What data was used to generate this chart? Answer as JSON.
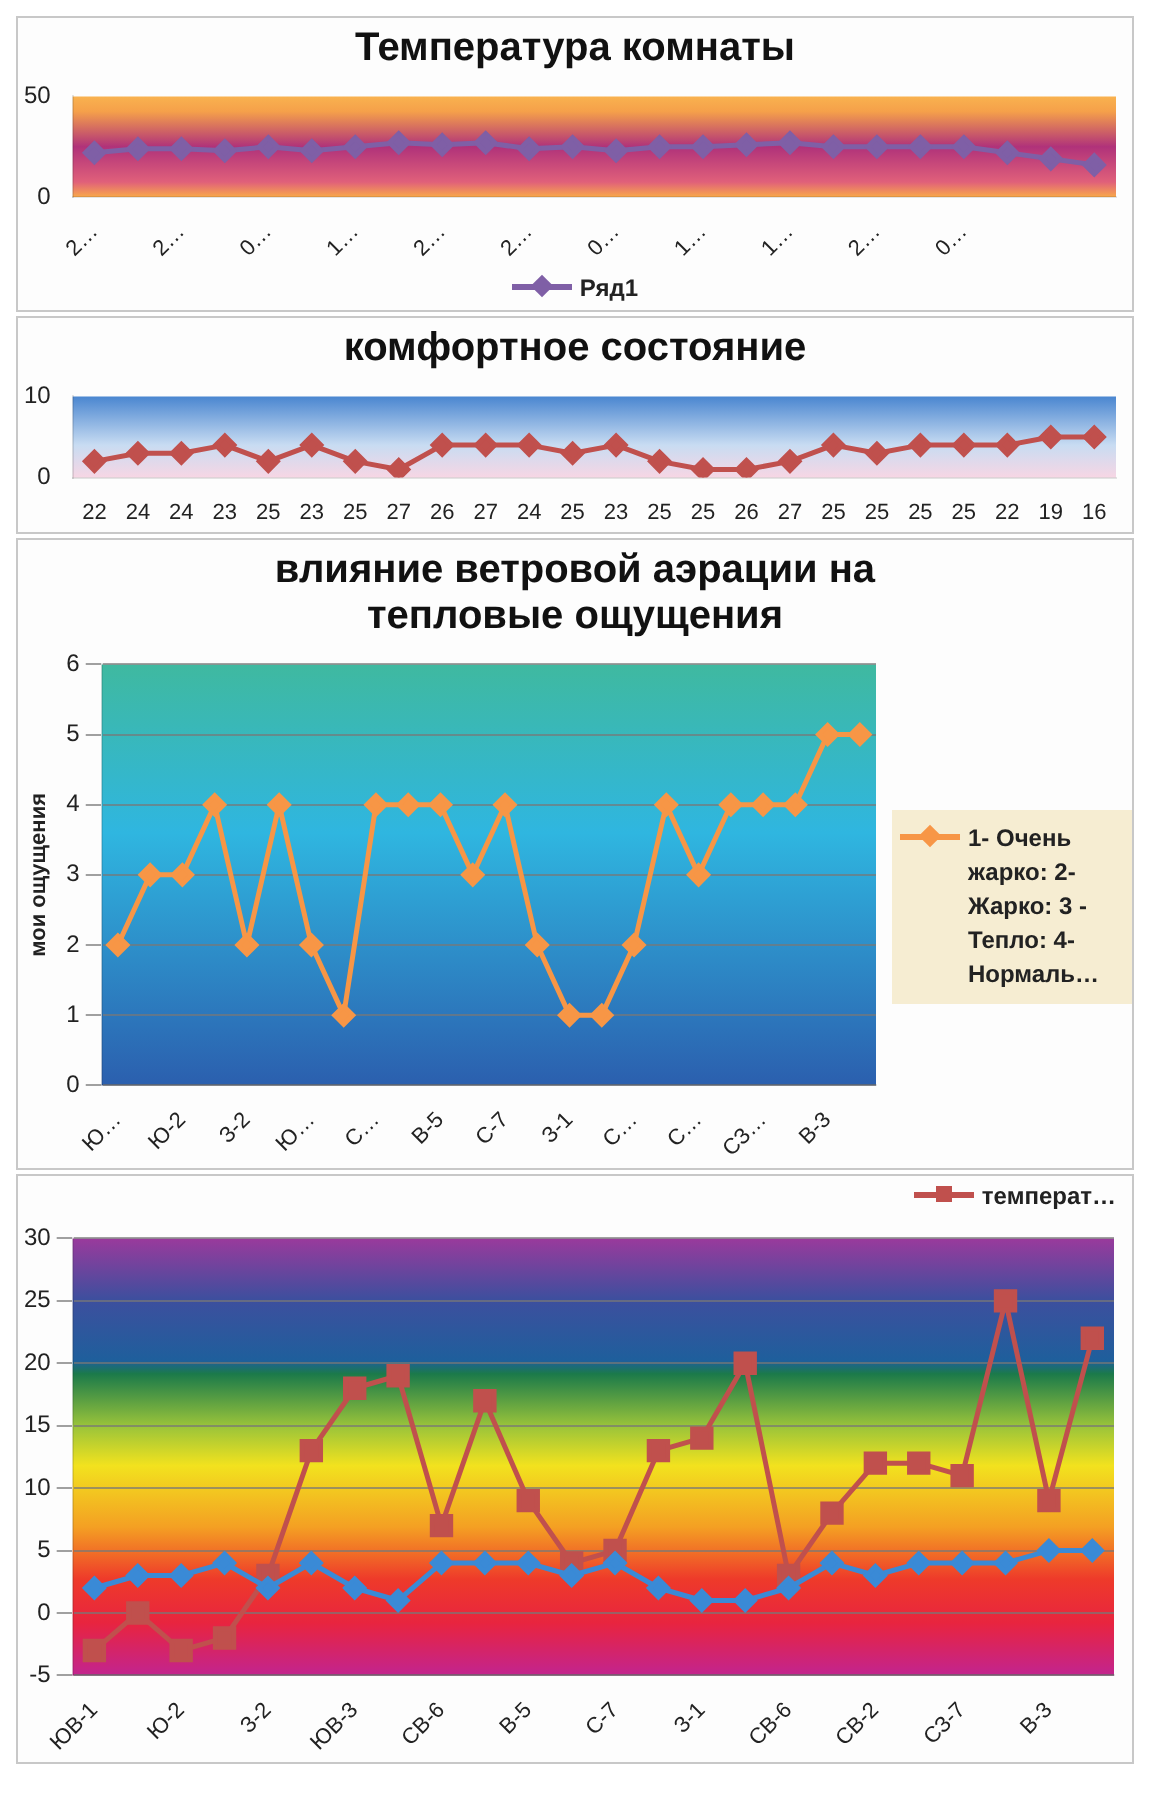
{
  "chart_data": [
    {
      "type": "line",
      "title": "Температура комнаты",
      "categories": [
        "2…",
        null,
        "2…",
        null,
        "0…",
        null,
        "1…",
        null,
        "2…",
        null,
        "2…",
        null,
        "0…",
        null,
        "1…",
        null,
        "1…",
        null,
        "2…",
        null,
        "0…",
        null,
        null,
        null
      ],
      "series": [
        {
          "name": "Ряд1",
          "color": "#7f5fa6",
          "values": [
            22,
            24,
            24,
            23,
            25,
            23,
            25,
            27,
            26,
            27,
            24,
            25,
            23,
            25,
            25,
            26,
            27,
            25,
            25,
            25,
            25,
            22,
            19,
            16
          ]
        }
      ],
      "ylim": [
        0,
        50
      ],
      "yticks": [
        0,
        50
      ],
      "marker": "diamond",
      "legend": "bottom"
    },
    {
      "type": "line",
      "title": "комфортное состояние",
      "categories": [
        "22",
        "24",
        "24",
        "23",
        "25",
        "23",
        "25",
        "27",
        "26",
        "27",
        "24",
        "25",
        "23",
        "25",
        "25",
        "26",
        "27",
        "25",
        "25",
        "25",
        "25",
        "22",
        "19",
        "16"
      ],
      "series": [
        {
          "color": "#c0504d",
          "values": [
            2,
            3,
            3,
            4,
            2,
            4,
            2,
            1,
            4,
            4,
            4,
            3,
            4,
            2,
            1,
            1,
            2,
            4,
            3,
            4,
            4,
            4,
            5,
            5
          ]
        }
      ],
      "ylim": [
        0,
        10
      ],
      "yticks": [
        0,
        10
      ],
      "marker": "diamond"
    },
    {
      "type": "line",
      "title": "влияние ветровой аэрации на тепловые ощущения",
      "ylabel": "мои ощущения",
      "categories": [
        "Ю…",
        null,
        "Ю-2",
        null,
        "З-2",
        null,
        "Ю…",
        null,
        "С…",
        null,
        "В-5",
        null,
        "С-7",
        null,
        "З-1",
        null,
        "С…",
        null,
        "С…",
        null,
        "СЗ…",
        null,
        "В-3",
        null
      ],
      "series": [
        {
          "name": "1- Очень жарко: 2- Жарко: 3 - Тепло: 4- Нормаль…",
          "color": "#f79646",
          "values": [
            2,
            3,
            3,
            4,
            2,
            4,
            2,
            1,
            4,
            4,
            4,
            3,
            4,
            2,
            1,
            1,
            2,
            4,
            3,
            4,
            4,
            4,
            5,
            5
          ]
        }
      ],
      "ylim": [
        0,
        6
      ],
      "yticks": [
        0,
        1,
        2,
        3,
        4,
        5,
        6
      ],
      "grid": "y",
      "marker": "diamond",
      "legend": "right"
    },
    {
      "type": "line",
      "categories": [
        "ЮВ-1",
        null,
        "Ю-2",
        null,
        "З-2",
        null,
        "ЮВ-3",
        null,
        "СВ-6",
        null,
        "В-5",
        null,
        "С-7",
        null,
        "З-1",
        null,
        "СВ-6",
        null,
        "СВ-2",
        null,
        "СЗ-7",
        null,
        "В-3",
        null
      ],
      "series": [
        {
          "color": "#3a8ad6",
          "marker": "diamond",
          "values": [
            2,
            3,
            3,
            4,
            2,
            4,
            2,
            1,
            4,
            4,
            4,
            3,
            4,
            2,
            1,
            1,
            2,
            4,
            3,
            4,
            4,
            4,
            5,
            5
          ]
        },
        {
          "name": "температ…",
          "color": "#c0504d",
          "marker": "square",
          "values": [
            -3,
            0,
            -3,
            -2,
            3,
            13,
            18,
            19,
            7,
            17,
            9,
            4,
            5,
            13,
            14,
            20,
            3,
            8,
            12,
            12,
            11,
            25,
            9,
            22
          ]
        }
      ],
      "ylim": [
        -5,
        30
      ],
      "yticks": [
        -5,
        0,
        5,
        10,
        15,
        20,
        25,
        30
      ],
      "grid": "y",
      "legend": "top right"
    }
  ]
}
